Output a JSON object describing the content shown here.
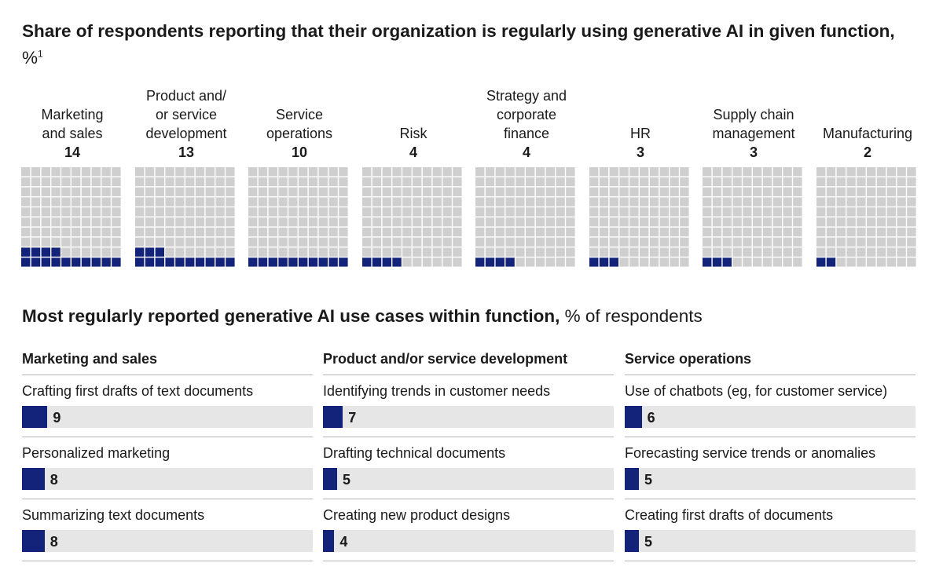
{
  "colors": {
    "filled": "#14237a",
    "empty": "#cfcfcf",
    "track": "#e6e6e6"
  },
  "header": {
    "title": "Share of respondents reporting that their organization is regularly using generative AI in given function,",
    "unit": "%",
    "footnote": "1"
  },
  "use_cases_header": {
    "title": "Most regularly reported generative AI use cases within function,",
    "unit": "% of respondents"
  },
  "chart_data": [
    {
      "type": "waffle",
      "unit": "%",
      "grid": "10x10 (100 squares per function)",
      "categories": [
        "Marketing and sales",
        "Product and/ or service development",
        "Service operations",
        "Risk",
        "Strategy and corporate finance",
        "HR",
        "Supply chain management",
        "Manufacturing"
      ],
      "category_labels": [
        "Marketing\nand sales",
        "Product and/\nor service\ndevelopment",
        "Service\noperations",
        "Risk",
        "Strategy and\ncorporate\nfinance",
        "HR",
        "Supply chain\nmanagement",
        "Manufacturing"
      ],
      "values": [
        14,
        13,
        10,
        4,
        4,
        3,
        3,
        2
      ]
    },
    {
      "type": "bar",
      "unit": "% of respondents",
      "groups": [
        {
          "name": "Marketing and sales",
          "items": [
            {
              "label": "Crafting first drafts of text documents",
              "value": 9
            },
            {
              "label": "Personalized marketing",
              "value": 8
            },
            {
              "label": "Summarizing text documents",
              "value": 8
            }
          ]
        },
        {
          "name": "Product and/or service development",
          "items": [
            {
              "label": "Identifying trends in customer needs",
              "value": 7
            },
            {
              "label": "Drafting technical documents",
              "value": 5
            },
            {
              "label": "Creating new product designs",
              "value": 4
            }
          ]
        },
        {
          "name": "Service operations",
          "items": [
            {
              "label": "Use of chatbots (eg, for customer service)",
              "value": 6
            },
            {
              "label": "Forecasting service trends or anomalies",
              "value": 5
            },
            {
              "label": "Creating first drafts of documents",
              "value": 5
            }
          ]
        }
      ]
    }
  ]
}
